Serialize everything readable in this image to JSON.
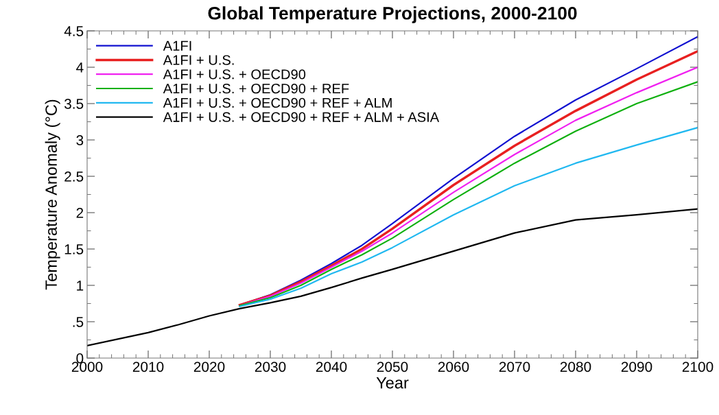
{
  "chart_data": {
    "type": "line",
    "title": "Global Temperature Projections, 2000-2100",
    "xlabel": "Year",
    "ylabel": "Temperature Anomaly (°C)",
    "x": [
      2000,
      2010,
      2015,
      2020,
      2025,
      2030,
      2035,
      2040,
      2045,
      2050,
      2060,
      2070,
      2080,
      2090,
      2100
    ],
    "series": [
      {
        "name": "A1FI",
        "color": "#1010d0",
        "values": [
          null,
          null,
          null,
          null,
          0.73,
          0.87,
          1.07,
          1.3,
          1.55,
          1.85,
          2.47,
          3.05,
          3.55,
          3.98,
          4.42
        ]
      },
      {
        "name": "A1FI + U.S.",
        "color": "#e82020",
        "values": [
          null,
          null,
          null,
          null,
          0.73,
          0.86,
          1.05,
          1.27,
          1.5,
          1.78,
          2.38,
          2.92,
          3.4,
          3.83,
          4.22
        ]
      },
      {
        "name": "A1FI + U.S. + OECD90",
        "color": "#f020f0",
        "values": [
          null,
          null,
          null,
          null,
          0.72,
          0.85,
          1.03,
          1.25,
          1.47,
          1.72,
          2.28,
          2.8,
          3.27,
          3.65,
          4.0
        ]
      },
      {
        "name": "A1FI + U.S. + OECD90 + REF",
        "color": "#10b010",
        "values": [
          null,
          null,
          null,
          null,
          0.72,
          0.83,
          1.0,
          1.22,
          1.42,
          1.65,
          2.18,
          2.68,
          3.12,
          3.5,
          3.8
        ]
      },
      {
        "name": "A1FI + U.S. + OECD90 + REF + ALM",
        "color": "#20b8f0",
        "values": [
          null,
          null,
          null,
          null,
          0.71,
          0.81,
          0.96,
          1.16,
          1.32,
          1.52,
          1.97,
          2.37,
          2.68,
          2.93,
          3.17
        ]
      },
      {
        "name": "A1FI + U.S. + OECD90 + REF + ALM + ASIA",
        "color": "#000000",
        "values": [
          0.17,
          0.35,
          0.46,
          0.58,
          0.68,
          0.76,
          0.85,
          0.97,
          1.1,
          1.22,
          1.47,
          1.72,
          1.9,
          1.97,
          2.05
        ]
      }
    ],
    "xlim": [
      2000,
      2100
    ],
    "xticks": [
      2000,
      2010,
      2020,
      2030,
      2040,
      2050,
      2060,
      2070,
      2080,
      2090,
      2100
    ],
    "ylim": [
      0,
      4.5
    ],
    "yticks": [
      0,
      {
        "value": 0.5,
        "label": ".5"
      },
      1,
      1.5,
      2,
      2.5,
      3,
      3.5,
      4,
      4.5
    ],
    "legend": "top left",
    "grid": false
  }
}
